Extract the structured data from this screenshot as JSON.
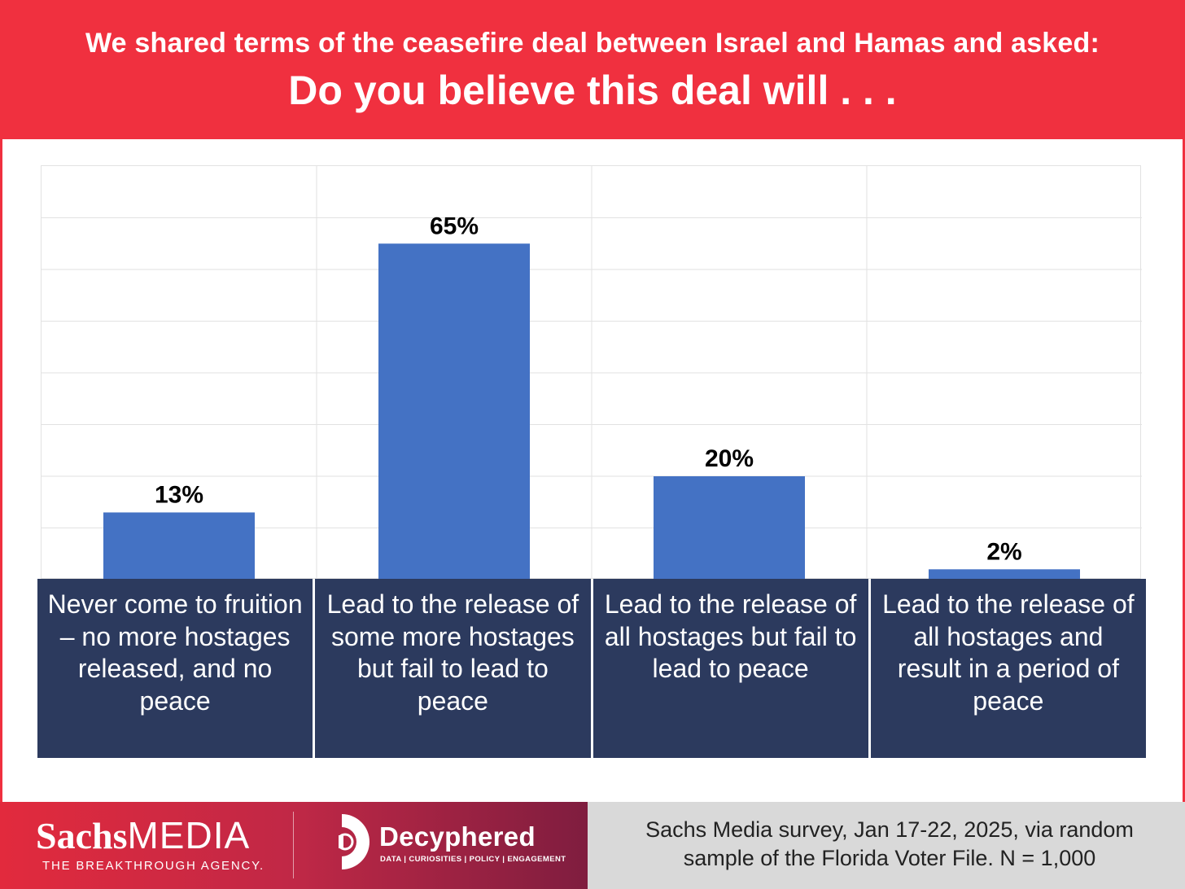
{
  "header": {
    "subtitle": "We shared terms of the ceasefire deal between Israel and Hamas and asked:",
    "title": "Do you believe this deal will . . ."
  },
  "chart_data": {
    "type": "bar",
    "categories": [
      "Never come to fruition – no more hostages released, and no peace",
      "Lead to the release of some more hostages but fail to lead to peace",
      "Lead to the release of all hostages but fail to lead to peace",
      "Lead to the release of all hostages and result in a period of peace"
    ],
    "values": [
      13,
      65,
      20,
      2
    ],
    "data_labels": [
      "13%",
      "65%",
      "20%",
      "2%"
    ],
    "ylim": [
      0,
      80
    ],
    "grid": true,
    "bar_color": "#4472c4"
  },
  "colors": {
    "accent": "#f0303f",
    "label_bg": "#2c3a5e",
    "footer_gray": "#d9d9d9"
  },
  "footer": {
    "brand_bold": "Sachs",
    "brand_light": "MEDIA",
    "brand_tagline": "THE BREAKTHROUGH AGENCY.",
    "partner_name": "Decyphered",
    "partner_tagline": "DATA | CURIOSITIES | POLICY | ENGAGEMENT",
    "partner_icon": "decyphered-logo-icon",
    "source_line1": "Sachs Media survey, Jan 17-22, 2025, via random",
    "source_line2": "sample of the Florida Voter File. N = 1,000"
  }
}
